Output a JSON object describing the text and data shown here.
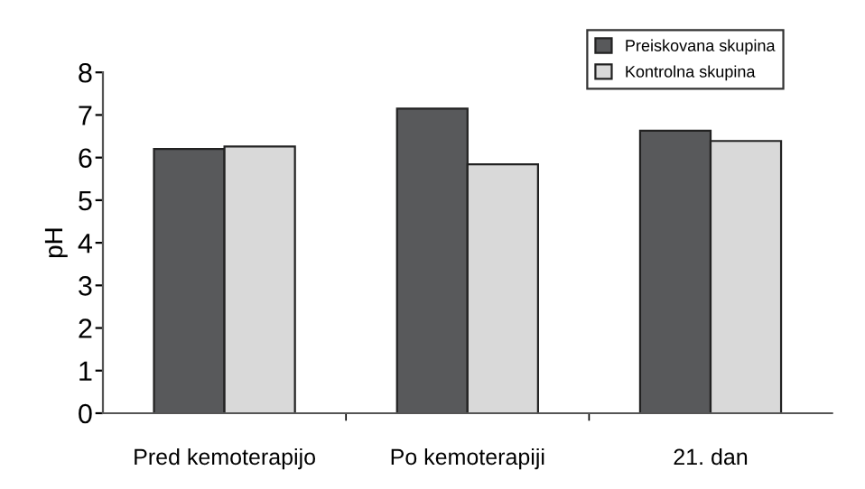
{
  "chart_data": {
    "type": "bar",
    "ylabel": "pH",
    "categories": [
      "Pred kemoterapijo",
      "Po kemoterapiji",
      "21. dan"
    ],
    "series": [
      {
        "name": "Preiskovana skupina",
        "color": "#58595b",
        "values": [
          6.2,
          7.15,
          6.63
        ]
      },
      {
        "name": "Kontrolna skupina",
        "color": "#d9d9d9",
        "values": [
          6.26,
          5.84,
          6.39
        ]
      }
    ],
    "ylim": [
      0,
      8
    ],
    "yticks": [
      0,
      1,
      2,
      3,
      4,
      5,
      6,
      7,
      8
    ],
    "grid": false,
    "legend": "top right"
  }
}
